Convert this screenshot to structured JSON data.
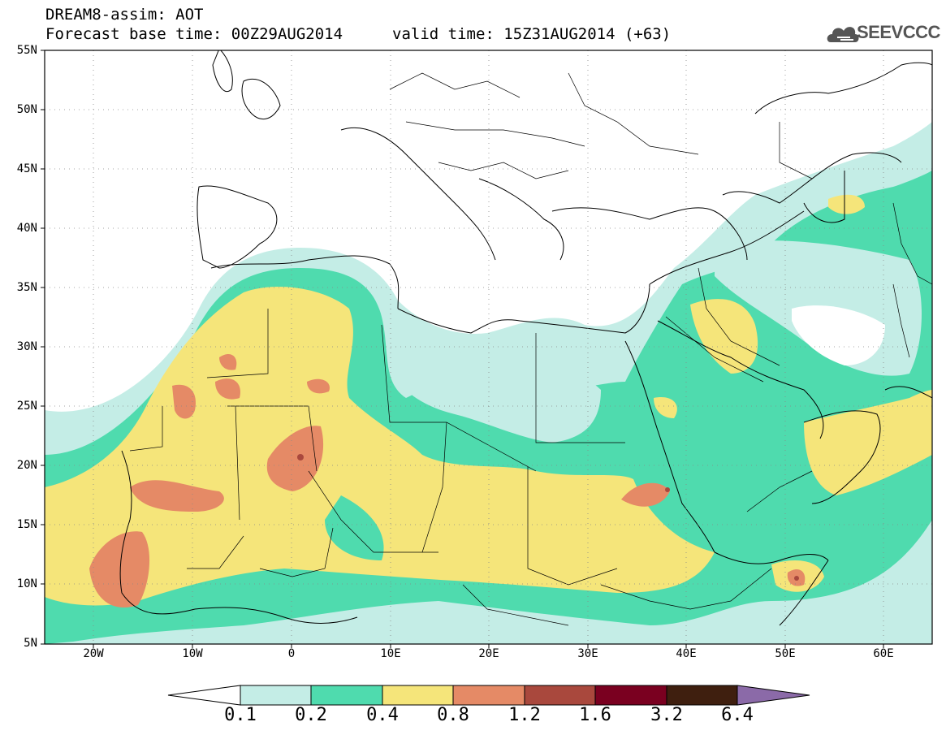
{
  "header": {
    "title_line1": "DREAM8-assim: AOT",
    "title_line2": "Forecast base time: 00Z29AUG2014",
    "valid_time": "valid time: 15Z31AUG2014 (+63)"
  },
  "logo": {
    "text": "SEEVCCC",
    "icon": "cloud-icon"
  },
  "map": {
    "lat_labels": [
      "55N",
      "50N",
      "45N",
      "40N",
      "35N",
      "30N",
      "25N",
      "20N",
      "15N",
      "10N",
      "5N"
    ],
    "lon_labels": [
      "20W",
      "10W",
      "0",
      "10E",
      "20E",
      "30E",
      "40E",
      "50E",
      "60E"
    ],
    "frame_color": "#000000"
  },
  "colorbar": {
    "labels": [
      "0.1",
      "0.2",
      "0.4",
      "0.8",
      "1.2",
      "1.6",
      "3.2",
      "6.4"
    ],
    "colors": [
      "#ffffff",
      "#c4ede6",
      "#4fdbae",
      "#f5e57a",
      "#e58a66",
      "#a9483d",
      "#7a0020",
      "#3f1f0f",
      "#8b6aa8"
    ]
  }
}
